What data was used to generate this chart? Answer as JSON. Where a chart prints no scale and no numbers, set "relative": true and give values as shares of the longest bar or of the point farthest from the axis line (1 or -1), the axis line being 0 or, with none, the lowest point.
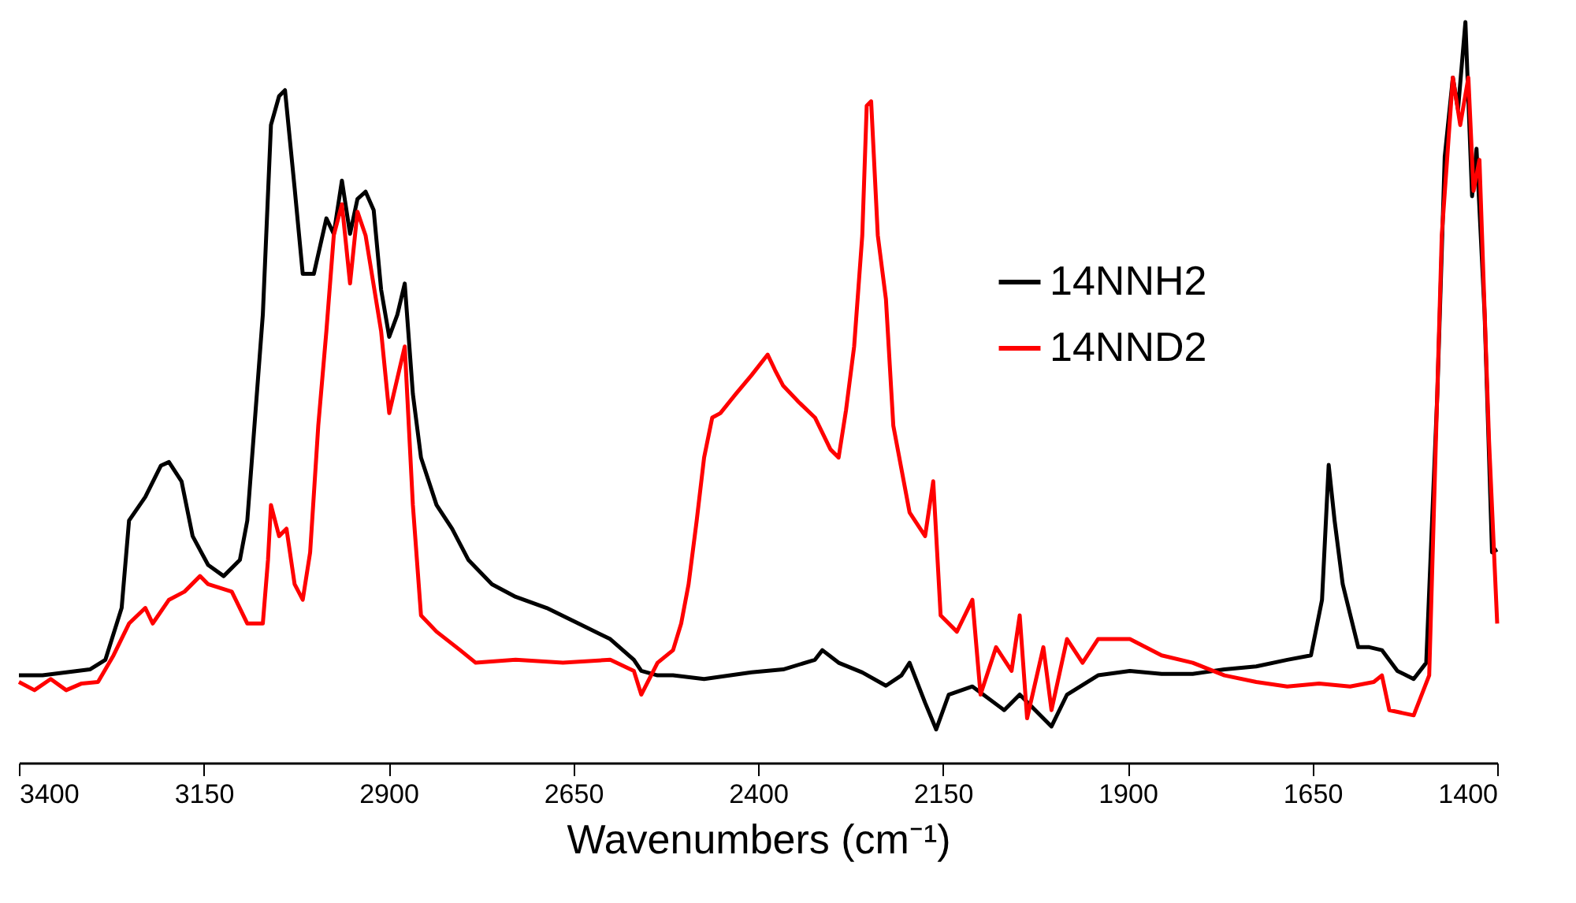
{
  "chart_data": {
    "type": "line",
    "relative": true,
    "xlabel": "Wavenumbers (cm⁻¹)",
    "xlim": [
      3400,
      1400
    ],
    "xticks": [
      3400,
      3150,
      2900,
      2650,
      2400,
      2150,
      1900,
      1650,
      1400
    ],
    "legend": "top right",
    "grid": false,
    "marker": "none",
    "line_style": "solid",
    "series": [
      {
        "name": "14NNH2",
        "color": "#000000",
        "x": [
          3400,
          3368,
          3336,
          3304,
          3283,
          3261,
          3251,
          3229,
          3208,
          3197,
          3180,
          3165,
          3144,
          3123,
          3101,
          3091,
          3070,
          3059,
          3048,
          3040,
          3027,
          3016,
          3001,
          2984,
          2974,
          2963,
          2952,
          2942,
          2931,
          2920,
          2910,
          2899,
          2888,
          2878,
          2867,
          2856,
          2835,
          2814,
          2792,
          2760,
          2728,
          2686,
          2643,
          2600,
          2568,
          2558,
          2536,
          2515,
          2473,
          2409,
          2366,
          2323,
          2313,
          2291,
          2259,
          2227,
          2206,
          2195,
          2174,
          2159,
          2142,
          2110,
          2067,
          2046,
          2003,
          1982,
          1940,
          1897,
          1854,
          1812,
          1769,
          1726,
          1684,
          1652,
          1637,
          1628,
          1620,
          1609,
          1588,
          1573,
          1556,
          1535,
          1513,
          1496,
          1481,
          1471,
          1460,
          1453,
          1443,
          1434,
          1428,
          1417,
          1407,
          1400
        ],
        "values": [
          0.118,
          0.118,
          0.122,
          0.126,
          0.139,
          0.209,
          0.327,
          0.359,
          0.401,
          0.406,
          0.38,
          0.306,
          0.267,
          0.252,
          0.274,
          0.327,
          0.605,
          0.861,
          0.9,
          0.908,
          0.776,
          0.66,
          0.66,
          0.735,
          0.714,
          0.786,
          0.714,
          0.761,
          0.771,
          0.746,
          0.639,
          0.575,
          0.605,
          0.647,
          0.498,
          0.412,
          0.348,
          0.316,
          0.274,
          0.241,
          0.224,
          0.209,
          0.188,
          0.167,
          0.139,
          0.124,
          0.118,
          0.118,
          0.113,
          0.122,
          0.126,
          0.139,
          0.152,
          0.135,
          0.122,
          0.104,
          0.118,
          0.135,
          0.081,
          0.045,
          0.092,
          0.103,
          0.071,
          0.092,
          0.049,
          0.092,
          0.118,
          0.124,
          0.12,
          0.12,
          0.126,
          0.13,
          0.139,
          0.145,
          0.22,
          0.402,
          0.327,
          0.241,
          0.156,
          0.156,
          0.152,
          0.124,
          0.113,
          0.135,
          0.498,
          0.818,
          0.925,
          0.882,
          1.0,
          0.765,
          0.829,
          0.605,
          0.284,
          0.288
        ]
      },
      {
        "name": "14NND2",
        "color": "#ff0000",
        "x": [
          3400,
          3379,
          3357,
          3336,
          3315,
          3293,
          3272,
          3251,
          3229,
          3219,
          3197,
          3176,
          3155,
          3144,
          3112,
          3091,
          3070,
          3063,
          3059,
          3048,
          3038,
          3027,
          3016,
          3006,
          2995,
          2984,
          2974,
          2963,
          2952,
          2942,
          2931,
          2910,
          2899,
          2888,
          2878,
          2867,
          2856,
          2835,
          2803,
          2782,
          2728,
          2664,
          2600,
          2568,
          2558,
          2536,
          2515,
          2504,
          2494,
          2483,
          2473,
          2462,
          2451,
          2430,
          2409,
          2387,
          2377,
          2366,
          2345,
          2323,
          2302,
          2291,
          2281,
          2270,
          2259,
          2253,
          2247,
          2238,
          2227,
          2217,
          2195,
          2174,
          2163,
          2153,
          2131,
          2110,
          2099,
          2078,
          2057,
          2046,
          2036,
          2014,
          2003,
          1982,
          1961,
          1940,
          1897,
          1854,
          1812,
          1769,
          1726,
          1684,
          1641,
          1599,
          1567,
          1556,
          1546,
          1513,
          1492,
          1475,
          1460,
          1450,
          1439,
          1432,
          1424,
          1411,
          1400
        ],
        "values": [
          0.109,
          0.098,
          0.113,
          0.098,
          0.107,
          0.109,
          0.145,
          0.188,
          0.209,
          0.188,
          0.22,
          0.231,
          0.252,
          0.241,
          0.231,
          0.188,
          0.188,
          0.274,
          0.348,
          0.306,
          0.316,
          0.241,
          0.22,
          0.284,
          0.455,
          0.583,
          0.712,
          0.754,
          0.647,
          0.744,
          0.712,
          0.583,
          0.472,
          0.519,
          0.562,
          0.348,
          0.199,
          0.177,
          0.152,
          0.135,
          0.139,
          0.135,
          0.139,
          0.124,
          0.092,
          0.135,
          0.152,
          0.188,
          0.241,
          0.327,
          0.412,
          0.466,
          0.472,
          0.498,
          0.523,
          0.551,
          0.53,
          0.509,
          0.487,
          0.466,
          0.423,
          0.412,
          0.476,
          0.562,
          0.712,
          0.887,
          0.893,
          0.712,
          0.626,
          0.455,
          0.338,
          0.306,
          0.38,
          0.199,
          0.177,
          0.22,
          0.092,
          0.156,
          0.124,
          0.199,
          0.06,
          0.156,
          0.071,
          0.167,
          0.135,
          0.167,
          0.167,
          0.145,
          0.135,
          0.118,
          0.109,
          0.103,
          0.107,
          0.103,
          0.109,
          0.118,
          0.071,
          0.064,
          0.118,
          0.712,
          0.925,
          0.861,
          0.925,
          0.772,
          0.814,
          0.434,
          0.188
        ]
      }
    ]
  }
}
